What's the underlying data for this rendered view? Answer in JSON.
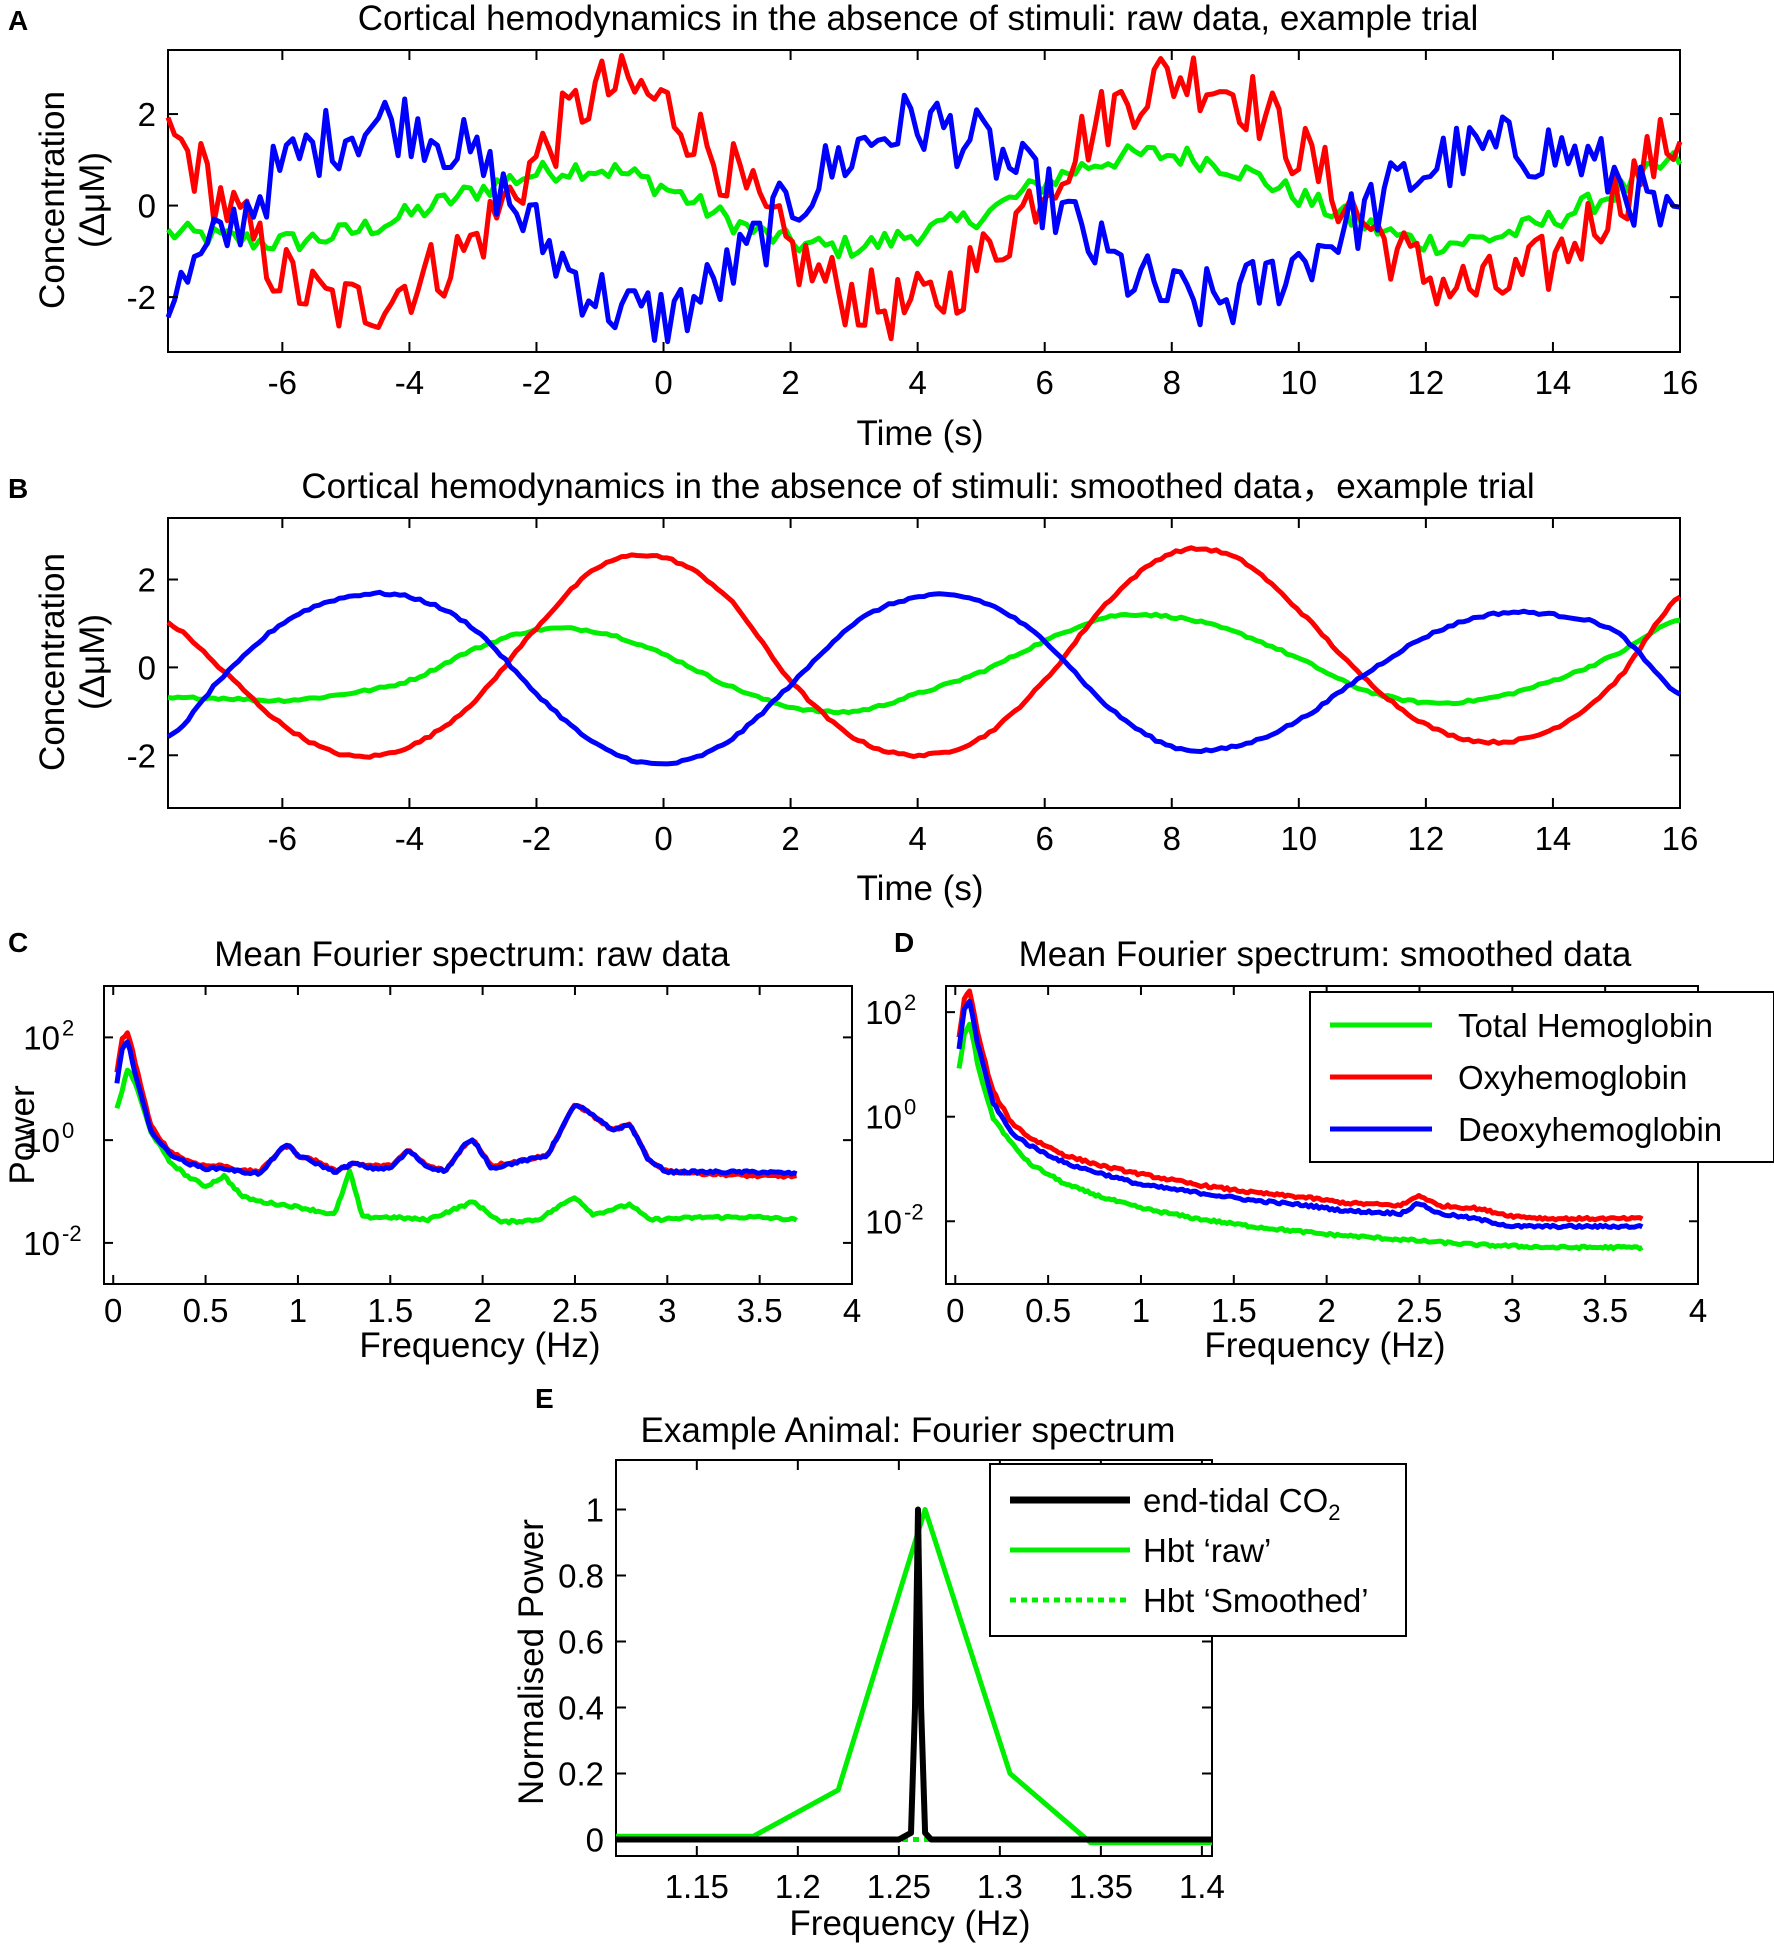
{
  "colors": {
    "total": "#00ee00",
    "oxy": "#ff0000",
    "deoxy": "#0000ff",
    "co2": "#000000",
    "axis": "#000000"
  },
  "chart_data": [
    {
      "panel": "A",
      "type": "line",
      "title": "Cortical hemodynamics in the absence of stimuli: raw data, example trial",
      "xlabel": "Time (s)",
      "ylabel_line1": "Concentration",
      "ylabel_line2": "(ΔμM)",
      "xlim": [
        -7.8,
        16
      ],
      "ylim": [
        -3.2,
        3.4
      ],
      "xticks": [
        -6,
        -4,
        -2,
        0,
        2,
        4,
        6,
        8,
        10,
        12,
        14,
        16
      ],
      "yticks": [
        -2,
        0,
        2
      ],
      "series": [
        {
          "name": "Total Hemoglobin",
          "color_key": "total",
          "period": 9.4,
          "amp": 0.95,
          "phase": 2.0,
          "noise": 0.25,
          "x": [
            -7.8,
            -7,
            -6,
            -5,
            -4,
            -3,
            -2,
            -1,
            0,
            1,
            2,
            3,
            4,
            5,
            6,
            7,
            8,
            9,
            10,
            11,
            12,
            13,
            14,
            15,
            16
          ],
          "y": [
            -0.6,
            -0.7,
            -0.8,
            -0.6,
            -0.2,
            0.3,
            0.7,
            0.8,
            0.4,
            -0.3,
            -0.8,
            -0.9,
            -0.6,
            -0.2,
            0.5,
            1.0,
            1.1,
            0.8,
            0.2,
            -0.4,
            -0.8,
            -0.7,
            -0.3,
            0.3,
            1.0
          ]
        },
        {
          "name": "Oxyhemoglobin",
          "color_key": "oxy",
          "period": 9.4,
          "amp": 2.3,
          "phase": -0.6,
          "noise": 0.75,
          "x": [
            -7.8,
            -7,
            -6,
            -5,
            -4,
            -3,
            -2,
            -1,
            0,
            1,
            2,
            3,
            4,
            5,
            6,
            7,
            8,
            9,
            10,
            11,
            12,
            13,
            14,
            15,
            16
          ],
          "y": [
            1.5,
            0.2,
            -1.5,
            -2.2,
            -1.7,
            -0.8,
            1.0,
            2.5,
            2.2,
            0.8,
            -1.0,
            -2.0,
            -2.2,
            -1.2,
            0.5,
            2.0,
            2.8,
            2.5,
            1.2,
            -0.3,
            -1.5,
            -1.8,
            -1.2,
            0.2,
            1.5
          ]
        },
        {
          "name": "Deoxyhemoglobin",
          "color_key": "deoxy",
          "period": 9.4,
          "amp": 2.0,
          "phase": 4.1,
          "noise": 0.75,
          "x": [
            -7.8,
            -7,
            -6,
            -5,
            -4,
            -3,
            -2,
            -1,
            0,
            1,
            2,
            3,
            4,
            5,
            6,
            7,
            8,
            9,
            10,
            11,
            12,
            13,
            14,
            15,
            16
          ],
          "y": [
            -2.0,
            -0.8,
            0.8,
            1.6,
            1.8,
            1.0,
            -0.6,
            -2.0,
            -2.4,
            -1.5,
            0.0,
            1.2,
            1.8,
            1.3,
            0.2,
            -1.2,
            -2.0,
            -2.0,
            -1.2,
            -0.2,
            0.8,
            1.2,
            1.2,
            0.6,
            -0.6
          ]
        }
      ]
    },
    {
      "panel": "B",
      "type": "line",
      "title": "Cortical hemodynamics in the absence of stimuli: smoothed data，example trial",
      "xlabel": "Time (s)",
      "ylabel_line1": "Concentration",
      "ylabel_line2": "(ΔμM)",
      "xlim": [
        -7.8,
        16
      ],
      "ylim": [
        -3.2,
        3.4
      ],
      "xticks": [
        -6,
        -4,
        -2,
        0,
        2,
        4,
        6,
        8,
        10,
        12,
        14,
        16
      ],
      "yticks": [
        -2,
        0,
        2
      ],
      "series": [
        {
          "name": "Total Hemoglobin",
          "color_key": "total",
          "x": [
            -7.8,
            -7,
            -6,
            -5,
            -4,
            -3,
            -2,
            -1,
            0,
            1,
            2,
            3,
            4,
            5,
            6,
            7,
            8,
            9,
            10,
            11,
            12,
            13,
            14,
            15,
            16
          ],
          "y": [
            -0.7,
            -0.7,
            -0.75,
            -0.6,
            -0.3,
            0.4,
            0.85,
            0.8,
            0.3,
            -0.4,
            -0.9,
            -1.0,
            -0.6,
            -0.1,
            0.6,
            1.15,
            1.15,
            0.8,
            0.2,
            -0.5,
            -0.8,
            -0.7,
            -0.3,
            0.3,
            1.1
          ]
        },
        {
          "name": "Oxyhemoglobin",
          "color_key": "oxy",
          "x": [
            -7.8,
            -7,
            -6,
            -5,
            -4,
            -3,
            -2,
            -1,
            0,
            1,
            2,
            3,
            4,
            5,
            6,
            7,
            8,
            9,
            10,
            11,
            12,
            13,
            14,
            15,
            16
          ],
          "y": [
            1.0,
            0.0,
            -1.3,
            -2.0,
            -1.8,
            -0.8,
            0.9,
            2.3,
            2.5,
            1.6,
            -0.3,
            -1.6,
            -2.0,
            -1.6,
            -0.3,
            1.5,
            2.6,
            2.5,
            1.3,
            -0.2,
            -1.3,
            -1.7,
            -1.4,
            -0.3,
            1.6
          ]
        },
        {
          "name": "Deoxyhemoglobin",
          "color_key": "deoxy",
          "x": [
            -7.8,
            -7,
            -6,
            -5,
            -4,
            -3,
            -2,
            -1,
            0,
            1,
            2,
            3,
            4,
            5,
            6,
            7,
            8,
            9,
            10,
            11,
            12,
            13,
            14,
            15,
            16
          ],
          "y": [
            -1.6,
            -0.3,
            1.0,
            1.6,
            1.6,
            0.9,
            -0.6,
            -1.8,
            -2.2,
            -1.7,
            -0.4,
            1.0,
            1.6,
            1.5,
            0.6,
            -0.9,
            -1.8,
            -1.8,
            -1.2,
            -0.2,
            0.7,
            1.2,
            1.2,
            0.8,
            -0.6
          ]
        }
      ]
    },
    {
      "panel": "C",
      "type": "line",
      "yscale": "log",
      "title": "Mean Fourier spectrum: raw data",
      "xlabel": "Frequency (Hz)",
      "ylabel": "Power",
      "xlim": [
        -0.05,
        4
      ],
      "ylim_log10": [
        -2.8,
        3.0
      ],
      "xticks": [
        "0",
        "0.5",
        "1",
        "1.5",
        "2",
        "2.5",
        "3",
        "3.5",
        "4"
      ],
      "yticks": [
        {
          "base": "10",
          "exp": "2",
          "log": 2
        },
        {
          "base": "10",
          "exp": "0",
          "log": 0
        },
        {
          "base": "10",
          "exp": "-2",
          "log": -2
        }
      ],
      "series": [
        {
          "name": "Total Hemoglobin",
          "color_key": "total",
          "x": [
            0.02,
            0.05,
            0.08,
            0.12,
            0.2,
            0.3,
            0.4,
            0.5,
            0.6,
            0.7,
            0.8,
            1.0,
            1.2,
            1.28,
            1.35,
            1.5,
            1.7,
            1.95,
            2.1,
            2.3,
            2.5,
            2.6,
            2.8,
            2.9,
            3.2,
            3.5,
            3.7
          ],
          "y_log10": [
            0.6,
            1.0,
            1.4,
            1.1,
            0.2,
            -0.4,
            -0.7,
            -0.9,
            -0.7,
            -1.1,
            -1.2,
            -1.3,
            -1.45,
            -0.6,
            -1.5,
            -1.5,
            -1.55,
            -1.2,
            -1.6,
            -1.55,
            -1.1,
            -1.45,
            -1.25,
            -1.55,
            -1.5,
            -1.5,
            -1.55
          ]
        },
        {
          "name": "Oxyhemoglobin",
          "color_key": "oxy",
          "x": [
            0.02,
            0.05,
            0.08,
            0.12,
            0.2,
            0.3,
            0.4,
            0.5,
            0.6,
            0.7,
            0.8,
            0.9,
            0.95,
            1.0,
            1.1,
            1.2,
            1.3,
            1.4,
            1.5,
            1.6,
            1.7,
            1.8,
            1.9,
            1.95,
            2.05,
            2.2,
            2.35,
            2.5,
            2.55,
            2.7,
            2.8,
            2.9,
            3.0,
            3.2,
            3.5,
            3.7
          ],
          "y_log10": [
            1.3,
            2.0,
            2.1,
            1.5,
            0.3,
            -0.2,
            -0.4,
            -0.5,
            -0.5,
            -0.6,
            -0.6,
            -0.2,
            -0.1,
            -0.3,
            -0.4,
            -0.6,
            -0.45,
            -0.5,
            -0.5,
            -0.2,
            -0.5,
            -0.6,
            -0.1,
            0.0,
            -0.5,
            -0.4,
            -0.3,
            0.7,
            0.6,
            0.2,
            0.3,
            -0.4,
            -0.6,
            -0.65,
            -0.7,
            -0.7
          ]
        },
        {
          "name": "Deoxyhemoglobin",
          "color_key": "deoxy",
          "x": [
            0.02,
            0.05,
            0.08,
            0.12,
            0.2,
            0.3,
            0.4,
            0.5,
            0.6,
            0.7,
            0.8,
            0.9,
            0.95,
            1.0,
            1.1,
            1.2,
            1.3,
            1.4,
            1.5,
            1.6,
            1.7,
            1.8,
            1.9,
            1.95,
            2.05,
            2.2,
            2.35,
            2.5,
            2.55,
            2.7,
            2.8,
            2.9,
            3.0,
            3.2,
            3.5,
            3.7
          ],
          "y_log10": [
            1.1,
            1.8,
            1.9,
            1.3,
            0.2,
            -0.25,
            -0.45,
            -0.55,
            -0.55,
            -0.62,
            -0.65,
            -0.2,
            -0.1,
            -0.3,
            -0.45,
            -0.62,
            -0.45,
            -0.55,
            -0.55,
            -0.2,
            -0.52,
            -0.6,
            -0.1,
            0.0,
            -0.55,
            -0.42,
            -0.3,
            0.7,
            0.6,
            0.2,
            0.3,
            -0.4,
            -0.62,
            -0.62,
            -0.62,
            -0.65
          ]
        }
      ]
    },
    {
      "panel": "D",
      "type": "line",
      "yscale": "log",
      "title": "Mean Fourier spectrum: smoothed data",
      "xlabel": "Frequency (Hz)",
      "xlim": [
        -0.05,
        4
      ],
      "ylim_log10": [
        -3.2,
        2.5
      ],
      "xticks": [
        "0",
        "0.5",
        "1",
        "1.5",
        "2",
        "2.5",
        "3",
        "3.5",
        "4"
      ],
      "yticks": [
        {
          "base": "10",
          "exp": "2",
          "log": 2
        },
        {
          "base": "10",
          "exp": "0",
          "log": 0
        },
        {
          "base": "10",
          "exp": "-2",
          "log": -2
        }
      ],
      "legend": {
        "position": "top-right",
        "entries": [
          "Total Hemoglobin",
          "Oxyhemoglobin",
          "Deoxyhemoglobin"
        ]
      },
      "series": [
        {
          "name": "Total Hemoglobin",
          "color_key": "total",
          "x": [
            0.02,
            0.05,
            0.08,
            0.12,
            0.2,
            0.3,
            0.4,
            0.6,
            0.8,
            1.0,
            1.3,
            1.6,
            2.0,
            2.4,
            2.8,
            3.2,
            3.7
          ],
          "y_log10": [
            0.9,
            1.6,
            1.8,
            1.0,
            0.0,
            -0.5,
            -0.9,
            -1.3,
            -1.55,
            -1.75,
            -1.95,
            -2.1,
            -2.25,
            -2.35,
            -2.45,
            -2.5,
            -2.5
          ]
        },
        {
          "name": "Oxyhemoglobin",
          "color_key": "oxy",
          "x": [
            0.02,
            0.05,
            0.08,
            0.12,
            0.2,
            0.3,
            0.4,
            0.6,
            0.8,
            1.0,
            1.3,
            1.6,
            1.9,
            2.1,
            2.4,
            2.5,
            2.6,
            2.8,
            3.0,
            3.2,
            3.7
          ],
          "y_log10": [
            1.5,
            2.3,
            2.4,
            1.6,
            0.5,
            -0.1,
            -0.4,
            -0.75,
            -0.95,
            -1.1,
            -1.3,
            -1.45,
            -1.55,
            -1.65,
            -1.7,
            -1.5,
            -1.7,
            -1.75,
            -1.9,
            -1.95,
            -1.95
          ]
        },
        {
          "name": "Deoxyhemoglobin",
          "color_key": "deoxy",
          "x": [
            0.02,
            0.05,
            0.08,
            0.12,
            0.2,
            0.3,
            0.4,
            0.6,
            0.8,
            1.0,
            1.3,
            1.6,
            1.9,
            2.1,
            2.4,
            2.5,
            2.6,
            2.8,
            3.0,
            3.2,
            3.7
          ],
          "y_log10": [
            1.3,
            2.1,
            2.2,
            1.4,
            0.3,
            -0.3,
            -0.55,
            -0.9,
            -1.1,
            -1.3,
            -1.45,
            -1.6,
            -1.7,
            -1.8,
            -1.85,
            -1.65,
            -1.85,
            -1.95,
            -2.1,
            -2.1,
            -2.1
          ]
        }
      ]
    },
    {
      "panel": "E",
      "type": "line",
      "title": "Example Animal: Fourier spectrum",
      "xlabel": "Frequency (Hz)",
      "ylabel": "Normalised Power",
      "xlim": [
        1.11,
        1.405
      ],
      "ylim": [
        -0.05,
        1.15
      ],
      "xticks": [
        "1.15",
        "1.2",
        "1.25",
        "1.3",
        "1.35",
        "1.4"
      ],
      "yticks": [
        "0",
        "0.2",
        "0.4",
        "0.6",
        "0.8",
        "1"
      ],
      "legend": {
        "position": "top-right",
        "entries": [
          "end-tidal CO",
          "Hbt ‘raw’",
          "Hbt ‘Smoothed’"
        ],
        "co2_subscript": "2"
      },
      "series": [
        {
          "name": "Hbt ‘raw’",
          "color_key": "total",
          "style": "solid",
          "x": [
            1.11,
            1.178,
            1.22,
            1.263,
            1.305,
            1.345,
            1.405
          ],
          "y": [
            0.01,
            0.01,
            0.15,
            1.0,
            0.2,
            -0.01,
            -0.01
          ]
        },
        {
          "name": "Hbt ‘Smoothed’",
          "color_key": "total",
          "style": "dotted",
          "x": [
            1.11,
            1.405
          ],
          "y": [
            0.0,
            0.0
          ]
        },
        {
          "name": "end-tidal CO2",
          "color_key": "co2",
          "style": "solid",
          "x": [
            1.11,
            1.25,
            1.256,
            1.258,
            1.2595,
            1.261,
            1.263,
            1.266,
            1.405
          ],
          "y": [
            0.0,
            0.0,
            0.02,
            0.4,
            1.0,
            0.4,
            0.02,
            0.0,
            0.0
          ]
        }
      ]
    }
  ]
}
